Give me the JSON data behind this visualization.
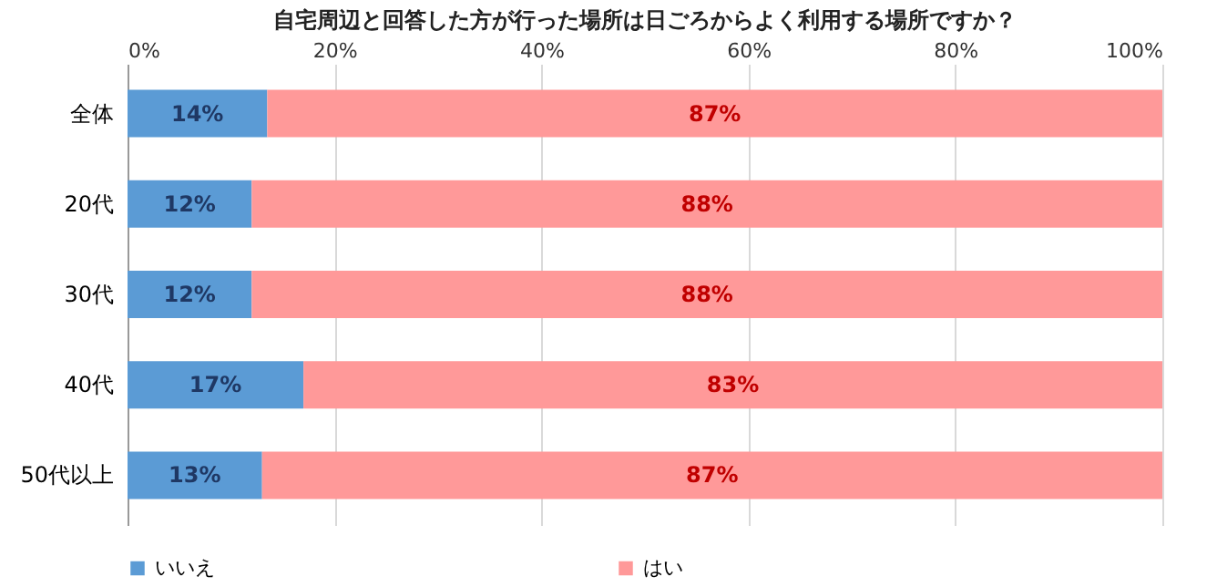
{
  "chart_data": {
    "type": "bar",
    "orientation": "horizontal",
    "stacked": true,
    "title": "自宅周辺と回答した方が行った場所は日ごろからよく利用する場所ですか？",
    "categories": [
      "全体",
      "20代",
      "30代",
      "40代",
      "50代以上"
    ],
    "series": [
      {
        "name": "いいえ",
        "color": "#5b9bd5",
        "values": [
          13.5,
          12,
          12,
          17,
          13
        ],
        "value_labels": [
          "14%",
          "12%",
          "12%",
          "17%",
          "13%"
        ]
      },
      {
        "name": "はい",
        "color": "#ff9999",
        "values": [
          86.5,
          88,
          88,
          83,
          87
        ],
        "value_labels": [
          "87%",
          "88%",
          "88%",
          "83%",
          "87%"
        ]
      }
    ],
    "xlim": [
      0,
      100
    ],
    "xticks": [
      {
        "value": 0,
        "label": "0%"
      },
      {
        "value": 20,
        "label": "20%"
      },
      {
        "value": 40,
        "label": "40%"
      },
      {
        "value": 60,
        "label": "60%"
      },
      {
        "value": 80,
        "label": "80%"
      },
      {
        "value": 100,
        "label": "100%"
      }
    ],
    "grid": "x",
    "legend": "bottom"
  }
}
